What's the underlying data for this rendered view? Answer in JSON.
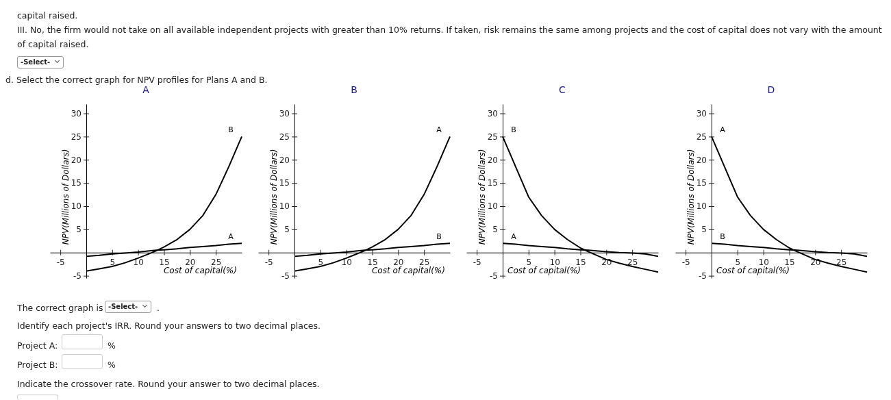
{
  "chart_data": [
    {
      "type": "other",
      "annotations": [
        "capital raised.",
        "III. No, the firm would not take on all available independent projects with greater than 10% returns. If taken, risk remains the same among projects and the cost of capital does not vary with the amount of capital raised.",
        "-Select-",
        "d. Select the correct graph for NPV profiles for Plans A and B."
      ]
    },
    {
      "type": "line",
      "title": "A",
      "xlabel": "Cost of capital(%)",
      "ylabel": "NPV(Millions of Dollars)",
      "xlim": [
        -7,
        30
      ],
      "ylim": [
        -5.5,
        32
      ],
      "xticks": [
        -5,
        5,
        10,
        15,
        20,
        25
      ],
      "yticks": [
        -5,
        5,
        10,
        15,
        20,
        25,
        30
      ],
      "x": [
        0,
        2.5,
        5,
        7.5,
        10,
        12.5,
        13.5,
        15,
        17.5,
        20,
        22.5,
        25,
        27.5,
        30
      ],
      "series": [
        {
          "name": "B",
          "color": "#000000",
          "values": [
            -4,
            -3.5,
            -3,
            -2.2,
            -1.2,
            -0.1,
            0.4,
            1.2,
            2.8,
            5,
            8,
            12.5,
            18.5,
            25
          ]
        },
        {
          "name": "A",
          "color": "#000000",
          "values": [
            -0.8,
            -0.6,
            -0.3,
            -0.1,
            0.1,
            0.4,
            0.5,
            0.6,
            0.8,
            1.1,
            1.3,
            1.5,
            1.8,
            2
          ]
        }
      ]
    },
    {
      "type": "line",
      "title": "B",
      "xlabel": "Cost of capital(%)",
      "ylabel": "NPV(Millions of Dollars)",
      "xlim": [
        -7,
        30
      ],
      "ylim": [
        -5.5,
        32
      ],
      "xticks": [
        -5,
        5,
        10,
        15,
        20,
        25
      ],
      "yticks": [
        -5,
        5,
        10,
        15,
        20,
        25,
        30
      ],
      "x": [
        0,
        2.5,
        5,
        7.5,
        10,
        12.5,
        13.5,
        15,
        17.5,
        20,
        22.5,
        25,
        27.5,
        30
      ],
      "series": [
        {
          "name": "A",
          "color": "#000000",
          "values": [
            -4,
            -3.5,
            -3,
            -2.2,
            -1.2,
            -0.1,
            0.4,
            1.2,
            2.8,
            5,
            8,
            12.5,
            18.5,
            25
          ]
        },
        {
          "name": "B",
          "color": "#000000",
          "values": [
            -0.8,
            -0.6,
            -0.3,
            -0.1,
            0.1,
            0.4,
            0.5,
            0.6,
            0.8,
            1.1,
            1.3,
            1.5,
            1.8,
            2
          ]
        }
      ]
    },
    {
      "type": "line",
      "title": "C",
      "xlabel": "Cost of capital(%)",
      "ylabel": "NPV(Millions of Dollars)",
      "xlim": [
        -7,
        30
      ],
      "ylim": [
        -5.5,
        32
      ],
      "xticks": [
        -5,
        5,
        10,
        15,
        20,
        25
      ],
      "yticks": [
        -5,
        5,
        10,
        15,
        20,
        25,
        30
      ],
      "x": [
        0,
        2.5,
        5,
        7.5,
        10,
        12.5,
        15,
        16.5,
        20,
        22.5,
        25,
        27.5,
        30
      ],
      "series": [
        {
          "name": "B",
          "color": "#000000",
          "values": [
            25,
            18.5,
            12,
            8,
            5,
            2.8,
            1,
            0.2,
            -1.5,
            -2.3,
            -3,
            -3.6,
            -4.2
          ]
        },
        {
          "name": "A",
          "color": "#000000",
          "values": [
            2,
            1.8,
            1.5,
            1.3,
            1.1,
            0.8,
            0.6,
            0.5,
            0.2,
            0,
            -0.1,
            -0.3,
            -0.8
          ]
        }
      ]
    },
    {
      "type": "line",
      "title": "D",
      "xlabel": "Cost of capital(%)",
      "ylabel": "NPV(Millions of Dollars)",
      "xlim": [
        -7,
        30
      ],
      "ylim": [
        -5.5,
        32
      ],
      "xticks": [
        -5,
        5,
        10,
        15,
        20,
        25
      ],
      "yticks": [
        -5,
        5,
        10,
        15,
        20,
        25,
        30
      ],
      "x": [
        0,
        2.5,
        5,
        7.5,
        10,
        12.5,
        15,
        16.5,
        20,
        22.5,
        25,
        27.5,
        30
      ],
      "series": [
        {
          "name": "A",
          "color": "#000000",
          "values": [
            25,
            18.5,
            12,
            8,
            5,
            2.8,
            1,
            0.2,
            -1.5,
            -2.3,
            -3,
            -3.6,
            -4.2
          ]
        },
        {
          "name": "B",
          "color": "#000000",
          "values": [
            2,
            1.8,
            1.5,
            1.3,
            1.1,
            0.8,
            0.6,
            0.5,
            0.2,
            0,
            -0.1,
            -0.3,
            -0.8
          ]
        }
      ]
    },
    {
      "type": "other",
      "annotations": [
        "The correct graph is",
        "-Select-",
        ".",
        "Identify each project's IRR. Round your answers to two decimal places.",
        "Project A:",
        "%",
        "Project B:",
        "%",
        "Indicate the crossover rate. Round your answer to two decimal places."
      ]
    }
  ]
}
